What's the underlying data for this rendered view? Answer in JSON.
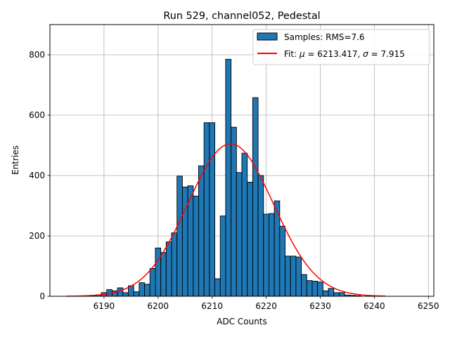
{
  "chart_data": {
    "type": "bar",
    "title": "Run 529, channel052, Pedestal",
    "xlabel": "ADC Counts",
    "ylabel": "Entries",
    "xlim": [
      6180,
      6251
    ],
    "ylim": [
      0,
      900
    ],
    "grid": true,
    "legend_placement": "top-right",
    "x_ticks": [
      6190,
      6200,
      6210,
      6220,
      6230,
      6240,
      6250
    ],
    "y_ticks": [
      0,
      200,
      400,
      600,
      800
    ],
    "bin_width": 1,
    "series": [
      {
        "name": "Samples: RMS=7.6",
        "kind": "histogram",
        "color": "#1f77b4",
        "edge_color": "#000000",
        "bins": [
          {
            "x": 6187,
            "count": 2
          },
          {
            "x": 6188,
            "count": 3
          },
          {
            "x": 6189,
            "count": 5
          },
          {
            "x": 6190,
            "count": 12
          },
          {
            "x": 6191,
            "count": 22
          },
          {
            "x": 6192,
            "count": 18
          },
          {
            "x": 6193,
            "count": 28
          },
          {
            "x": 6194,
            "count": 12
          },
          {
            "x": 6195,
            "count": 35
          },
          {
            "x": 6196,
            "count": 15
          },
          {
            "x": 6197,
            "count": 45
          },
          {
            "x": 6198,
            "count": 40
          },
          {
            "x": 6199,
            "count": 92
          },
          {
            "x": 6200,
            "count": 160
          },
          {
            "x": 6201,
            "count": 145
          },
          {
            "x": 6202,
            "count": 180
          },
          {
            "x": 6203,
            "count": 210
          },
          {
            "x": 6204,
            "count": 398
          },
          {
            "x": 6205,
            "count": 362
          },
          {
            "x": 6206,
            "count": 366
          },
          {
            "x": 6207,
            "count": 332
          },
          {
            "x": 6208,
            "count": 432
          },
          {
            "x": 6209,
            "count": 575
          },
          {
            "x": 6210,
            "count": 575
          },
          {
            "x": 6211,
            "count": 58
          },
          {
            "x": 6212,
            "count": 266
          },
          {
            "x": 6213,
            "count": 785
          },
          {
            "x": 6214,
            "count": 560
          },
          {
            "x": 6215,
            "count": 410
          },
          {
            "x": 6216,
            "count": 474
          },
          {
            "x": 6217,
            "count": 378
          },
          {
            "x": 6218,
            "count": 658
          },
          {
            "x": 6219,
            "count": 400
          },
          {
            "x": 6220,
            "count": 272
          },
          {
            "x": 6221,
            "count": 274
          },
          {
            "x": 6222,
            "count": 316
          },
          {
            "x": 6223,
            "count": 232
          },
          {
            "x": 6224,
            "count": 133
          },
          {
            "x": 6225,
            "count": 133
          },
          {
            "x": 6226,
            "count": 130
          },
          {
            "x": 6227,
            "count": 72
          },
          {
            "x": 6228,
            "count": 52
          },
          {
            "x": 6229,
            "count": 50
          },
          {
            "x": 6230,
            "count": 47
          },
          {
            "x": 6231,
            "count": 18
          },
          {
            "x": 6232,
            "count": 26
          },
          {
            "x": 6233,
            "count": 12
          },
          {
            "x": 6234,
            "count": 12
          },
          {
            "x": 6235,
            "count": 4
          },
          {
            "x": 6236,
            "count": 3
          },
          {
            "x": 6237,
            "count": 2
          }
        ]
      },
      {
        "name": "Fit: $\\mu$ = 6213.417, $\\sigma$ = 7.915",
        "legend_prefix": "Fit: ",
        "legend_sym1": "μ",
        "legend_mid": " = 6213.417, ",
        "legend_sym2": "σ",
        "legend_suffix": " = 7.915",
        "kind": "gaussian",
        "color": "#ff0000",
        "mu": 6213.417,
        "sigma": 7.915,
        "amplitude": 505,
        "x_range": [
          6183,
          6242
        ]
      }
    ]
  }
}
